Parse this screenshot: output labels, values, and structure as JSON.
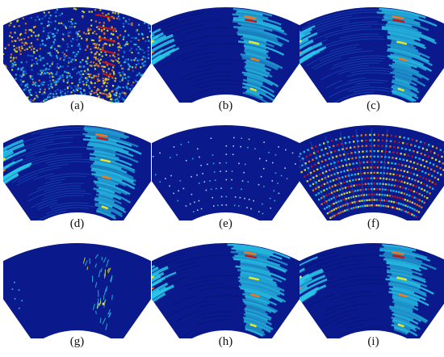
{
  "panels": [
    {
      "id": "a",
      "label": "(a)",
      "pattern": "noisy"
    },
    {
      "id": "b",
      "label": "(b)",
      "pattern": "clean"
    },
    {
      "id": "c",
      "label": "(c)",
      "pattern": "clean-textured"
    },
    {
      "id": "d",
      "label": "(d)",
      "pattern": "clean-textured"
    },
    {
      "id": "e",
      "label": "(e)",
      "pattern": "sparse-dots"
    },
    {
      "id": "f",
      "label": "(f)",
      "pattern": "dense-dots"
    },
    {
      "id": "g",
      "label": "(g)",
      "pattern": "sparse-streaks"
    },
    {
      "id": "h",
      "label": "(h)",
      "pattern": "clean"
    },
    {
      "id": "i",
      "label": "(i)",
      "pattern": "clean"
    }
  ],
  "colors": {
    "background": "#0a1a8c",
    "deep": "#071070",
    "mid": "#1f66d8",
    "cyan": "#27c7e6",
    "yellow": "#e8e82a",
    "orange": "#f07a1a",
    "red": "#c81414"
  }
}
